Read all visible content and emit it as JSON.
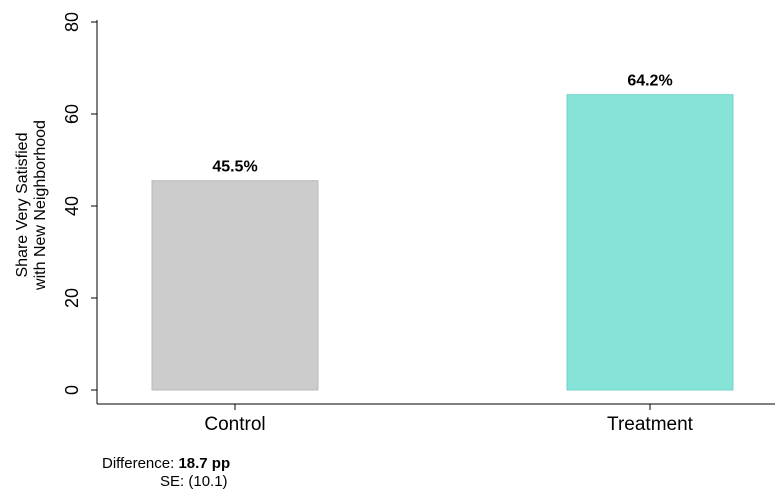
{
  "chart_data": {
    "type": "bar",
    "categories": [
      "Control",
      "Treatment"
    ],
    "values": [
      45.5,
      64.2
    ],
    "data_labels": [
      "45.5%",
      "64.2%"
    ],
    "ylabel_line1": "Share Very Satisfied",
    "ylabel_line2": "with New Neighborhood",
    "ylim": [
      0,
      80
    ],
    "yticks": [
      0,
      20,
      40,
      60,
      80
    ],
    "grid": false,
    "legend": "none",
    "bar_colors": [
      "#cccccc",
      "#86e3d8"
    ],
    "bar_edge_colors": [
      "#b8b8b8",
      "#6fd6ca"
    ]
  },
  "note": {
    "difference_label": "Difference:",
    "difference_value": "18.7 pp",
    "se_label": "SE:",
    "se_value": "(10.1)"
  }
}
